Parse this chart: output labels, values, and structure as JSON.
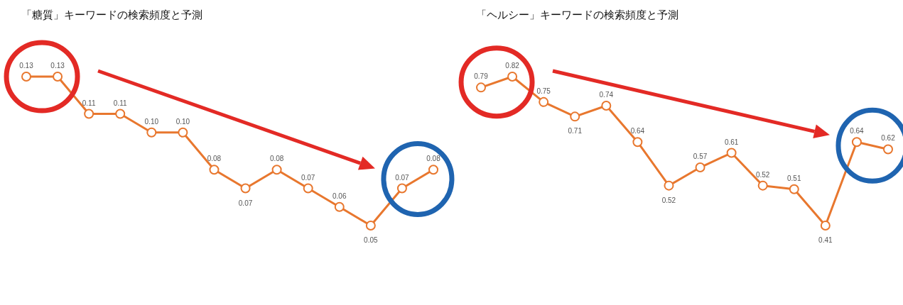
{
  "chart_data": [
    {
      "type": "line",
      "title": "「糖質」キーワードの検索頻度と予測",
      "categories": [
        null,
        null,
        null,
        null,
        null,
        null,
        null,
        null,
        null,
        null,
        null,
        null,
        null,
        null
      ],
      "marker": "circle",
      "data_labels": true,
      "series": [
        {
          "color": "#e8772e",
          "values": [
            0.13,
            0.13,
            0.11,
            0.11,
            0.1,
            0.1,
            0.08,
            0.07,
            0.08,
            0.07,
            0.06,
            0.05,
            0.07,
            0.08
          ],
          "value_labels": [
            "0.13",
            "0.13",
            "0.11",
            "0.11",
            "0.10",
            "0.10",
            "0.08",
            "0.07",
            "0.08",
            "0.07",
            "0.06",
            "0.05",
            "0.07",
            "0.08"
          ]
        }
      ]
    },
    {
      "type": "line",
      "title": "「ヘルシー」キーワードの検索頻度と予測",
      "categories": [
        null,
        null,
        null,
        null,
        null,
        null,
        null,
        null,
        null,
        null,
        null,
        null,
        null,
        null
      ],
      "marker": "circle",
      "data_labels": true,
      "series": [
        {
          "color": "#e8772e",
          "values": [
            0.79,
            0.82,
            0.75,
            0.71,
            0.74,
            0.64,
            0.52,
            0.57,
            0.61,
            0.52,
            0.51,
            0.41,
            0.64,
            0.62
          ]
        }
      ]
    }
  ]
}
